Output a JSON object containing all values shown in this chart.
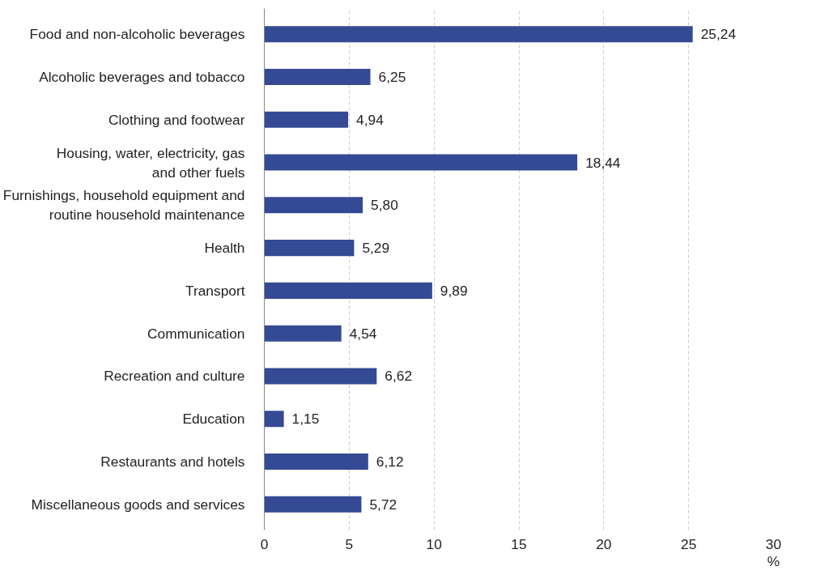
{
  "chart_data": {
    "type": "bar",
    "orientation": "horizontal",
    "xlabel": "%",
    "categories": [
      "Food and non-alcoholic beverages",
      "Alcoholic beverages and tobacco",
      "Clothing and footwear",
      "Housing, water, electricity, gas\nand other fuels",
      "Furnishings, household equipment and\nroutine household maintenance",
      "Health",
      "Transport",
      "Communication",
      "Recreation and culture",
      "Education",
      "Restaurants and hotels",
      "Miscellaneous goods and services"
    ],
    "values": [
      25.24,
      6.25,
      4.94,
      18.44,
      5.8,
      5.29,
      9.89,
      4.54,
      6.62,
      1.15,
      6.12,
      5.72
    ],
    "value_labels": [
      "25,24",
      "6,25",
      "4,94",
      "18,44",
      "5,80",
      "5,29",
      "9,89",
      "4,54",
      "6,62",
      "1,15",
      "6,12",
      "5,72"
    ],
    "color": "#344a94",
    "xlim": [
      0,
      30
    ],
    "xticks": [
      0,
      5,
      10,
      15,
      20,
      25,
      30
    ],
    "grid": "x"
  }
}
